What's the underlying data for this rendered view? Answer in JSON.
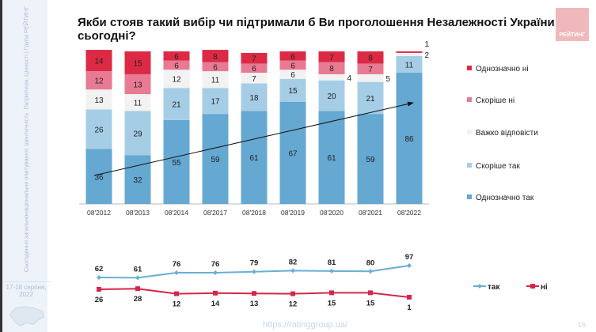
{
  "title": "Якби стояв такий вибір чи підтримали б Ви проголошення Незалежності України сьогодні?",
  "logo": "РЕЙТИНГ",
  "sidebar": {
    "text": "Cьогодення загальнонаціональне опитування: Ідентичність. Патріотизм. Цінності | Група РЕЙТИНГ",
    "date": "17-18 серпня, 2022"
  },
  "footer": {
    "url": "https://ratinggroup.ua/",
    "page": "16"
  },
  "chart_data": [
    {
      "type": "bar",
      "stacked": true,
      "categories": [
        "08'2012",
        "08'2013",
        "08'2014",
        "08'2017",
        "08'2018",
        "08'2019",
        "08'2020",
        "08'2021",
        "08'2022"
      ],
      "series": [
        {
          "name": "Однозначно так",
          "color": "#65a8d2",
          "values": [
            36,
            32,
            55,
            59,
            61,
            67,
            61,
            59,
            86
          ]
        },
        {
          "name": "Скоріше так",
          "color": "#a6cde6",
          "values": [
            26,
            29,
            21,
            17,
            18,
            15,
            20,
            21,
            11
          ]
        },
        {
          "name": "Важко відповісти",
          "color": "#f2f2f2",
          "values": [
            13,
            11,
            12,
            11,
            7,
            6,
            4,
            5,
            2
          ]
        },
        {
          "name": "Скоріше ні",
          "color": "#e97a93",
          "values": [
            12,
            13,
            6,
            6,
            6,
            6,
            8,
            7,
            0
          ]
        },
        {
          "name": "Однозначно ні",
          "color": "#dc2a45",
          "values": [
            14,
            15,
            6,
            8,
            7,
            6,
            7,
            8,
            1
          ]
        }
      ],
      "legend": "right",
      "ylim": [
        0,
        100
      ]
    },
    {
      "type": "line",
      "categories": [
        "08'2012",
        "08'2013",
        "08'2014",
        "08'2017",
        "08'2018",
        "08'2019",
        "08'2020",
        "08'2021",
        "08'2022"
      ],
      "series": [
        {
          "name": "так",
          "color": "#6aaed6",
          "marker": "diamond",
          "values": [
            62,
            61,
            76,
            76,
            79,
            82,
            81,
            80,
            97
          ]
        },
        {
          "name": "ні",
          "color": "#d6264c",
          "marker": "square",
          "values": [
            26,
            28,
            12,
            14,
            13,
            12,
            15,
            15,
            1
          ]
        }
      ],
      "legend": "right"
    }
  ]
}
